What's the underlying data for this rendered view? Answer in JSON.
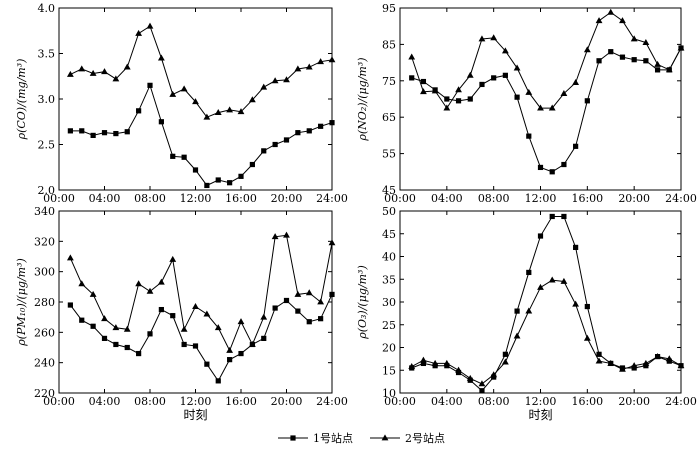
{
  "legend": [
    {
      "label": "1号站点",
      "marker": "square"
    },
    {
      "label": "2号站点",
      "marker": "triangle"
    }
  ],
  "chart_data": [
    {
      "type": "line",
      "ylabel": "ρ(CO)/(mg/m³)",
      "xlabel": "",
      "xlim": [
        0,
        24
      ],
      "ylim": [
        2.0,
        4.0
      ],
      "xticks": [
        0,
        4,
        8,
        12,
        16,
        20,
        24
      ],
      "xtick_labels": [
        "00:00",
        "04:00",
        "08:00",
        "12:00",
        "16:00",
        "20:00",
        "24:00"
      ],
      "yticks": [
        2.0,
        2.5,
        3.0,
        3.5,
        4.0
      ],
      "ytick_labels": [
        "2.0",
        "2.5",
        "3.0",
        "3.5",
        "4.0"
      ],
      "x": [
        1,
        2,
        3,
        4,
        5,
        6,
        7,
        8,
        9,
        10,
        11,
        12,
        13,
        14,
        15,
        16,
        17,
        18,
        19,
        20,
        21,
        22,
        23,
        24
      ],
      "series": [
        {
          "name": "1号站点",
          "marker": "square",
          "values": [
            2.65,
            2.65,
            2.6,
            2.63,
            2.62,
            2.64,
            2.87,
            3.15,
            2.75,
            2.37,
            2.36,
            2.22,
            2.05,
            2.11,
            2.08,
            2.15,
            2.28,
            2.43,
            2.5,
            2.55,
            2.63,
            2.65,
            2.7,
            2.74
          ]
        },
        {
          "name": "2号站点",
          "marker": "triangle",
          "values": [
            3.27,
            3.33,
            3.28,
            3.3,
            3.22,
            3.35,
            3.72,
            3.8,
            3.45,
            3.05,
            3.11,
            2.97,
            2.8,
            2.85,
            2.88,
            2.86,
            2.99,
            3.13,
            3.2,
            3.21,
            3.33,
            3.35,
            3.41,
            3.43
          ]
        }
      ]
    },
    {
      "type": "line",
      "ylabel": "ρ(NO₂)/(μg/m³)",
      "xlabel": "",
      "xlim": [
        0,
        24
      ],
      "ylim": [
        45,
        95
      ],
      "xticks": [
        0,
        4,
        8,
        12,
        16,
        20,
        24
      ],
      "xtick_labels": [
        "00:00",
        "04:00",
        "08:00",
        "12:00",
        "16:00",
        "20:00",
        "24:00"
      ],
      "yticks": [
        45,
        55,
        65,
        75,
        85,
        95
      ],
      "ytick_labels": [
        "45",
        "55",
        "65",
        "75",
        "85",
        "95"
      ],
      "x": [
        1,
        2,
        3,
        4,
        5,
        6,
        7,
        8,
        9,
        10,
        11,
        12,
        13,
        14,
        15,
        16,
        17,
        18,
        19,
        20,
        21,
        22,
        23,
        24
      ],
      "series": [
        {
          "name": "1号站点",
          "marker": "square",
          "values": [
            75.8,
            74.8,
            72.5,
            70.0,
            69.5,
            70.0,
            74.0,
            75.8,
            76.5,
            70.5,
            59.8,
            51.2,
            50.0,
            52.0,
            57.0,
            69.5,
            80.5,
            83.0,
            81.5,
            80.8,
            80.5,
            78.0,
            78.0,
            84.0
          ]
        },
        {
          "name": "2号站点",
          "marker": "triangle",
          "values": [
            81.5,
            72.0,
            72.2,
            67.5,
            72.5,
            76.5,
            86.5,
            86.8,
            83.2,
            78.5,
            71.8,
            67.5,
            67.5,
            71.5,
            74.5,
            83.5,
            91.5,
            93.8,
            91.5,
            86.5,
            85.5,
            79.5,
            78.0,
            84.0
          ]
        }
      ]
    },
    {
      "type": "line",
      "ylabel": "ρ(PM₁₀)/(μg/m³)",
      "xlabel": "时刻",
      "xlim": [
        0,
        24
      ],
      "ylim": [
        220,
        340
      ],
      "xticks": [
        0,
        4,
        8,
        12,
        16,
        20,
        24
      ],
      "xtick_labels": [
        "00:00",
        "04:00",
        "08:00",
        "12:00",
        "16:00",
        "20:00",
        "24:00"
      ],
      "yticks": [
        220,
        240,
        260,
        280,
        300,
        320,
        340
      ],
      "ytick_labels": [
        "220",
        "240",
        "260",
        "280",
        "300",
        "320",
        "340"
      ],
      "x": [
        1,
        2,
        3,
        4,
        5,
        6,
        7,
        8,
        9,
        10,
        11,
        12,
        13,
        14,
        15,
        16,
        17,
        18,
        19,
        20,
        21,
        22,
        23,
        24
      ],
      "series": [
        {
          "name": "1号站点",
          "marker": "square",
          "values": [
            278,
            268,
            264,
            256,
            252,
            250,
            246,
            259,
            275,
            271,
            252,
            251,
            239,
            228,
            242,
            246,
            252,
            256,
            276,
            281,
            274,
            267,
            269,
            285
          ]
        },
        {
          "name": "2号站点",
          "marker": "triangle",
          "values": [
            309,
            292,
            285,
            269,
            263,
            262,
            292,
            287,
            293,
            308,
            262,
            277,
            272,
            263,
            248,
            267,
            252,
            270,
            323,
            324,
            285,
            286,
            280,
            319
          ]
        }
      ]
    },
    {
      "type": "line",
      "ylabel": "ρ(O₃)/(μg/m³)",
      "xlabel": "时刻",
      "xlim": [
        0,
        24
      ],
      "ylim": [
        10,
        50
      ],
      "xticks": [
        0,
        4,
        8,
        12,
        16,
        20,
        24
      ],
      "xtick_labels": [
        "00:00",
        "04:00",
        "08:00",
        "12:00",
        "16:00",
        "20:00",
        "24:00"
      ],
      "yticks": [
        10,
        15,
        20,
        25,
        30,
        35,
        40,
        45,
        50
      ],
      "ytick_labels": [
        "10",
        "15",
        "20",
        "25",
        "30",
        "35",
        "40",
        "45",
        "50"
      ],
      "x": [
        1,
        2,
        3,
        4,
        5,
        6,
        7,
        8,
        9,
        10,
        11,
        12,
        13,
        14,
        15,
        16,
        17,
        18,
        19,
        20,
        21,
        22,
        23,
        24
      ],
      "series": [
        {
          "name": "1号站点",
          "marker": "square",
          "values": [
            15.5,
            16.5,
            16.0,
            16.0,
            14.5,
            12.8,
            10.5,
            13.5,
            18.5,
            28.0,
            36.5,
            44.5,
            48.8,
            48.8,
            42.0,
            29.0,
            18.5,
            16.5,
            15.5,
            15.5,
            16.0,
            18.0,
            17.0,
            16.0
          ]
        },
        {
          "name": "2号站点",
          "marker": "triangle",
          "values": [
            15.8,
            17.2,
            16.5,
            16.5,
            15.0,
            13.2,
            12.0,
            14.0,
            16.8,
            22.5,
            28.0,
            33.2,
            34.8,
            34.5,
            29.5,
            22.0,
            17.0,
            16.5,
            15.2,
            16.0,
            16.5,
            18.0,
            17.5,
            16.0
          ]
        }
      ]
    }
  ]
}
